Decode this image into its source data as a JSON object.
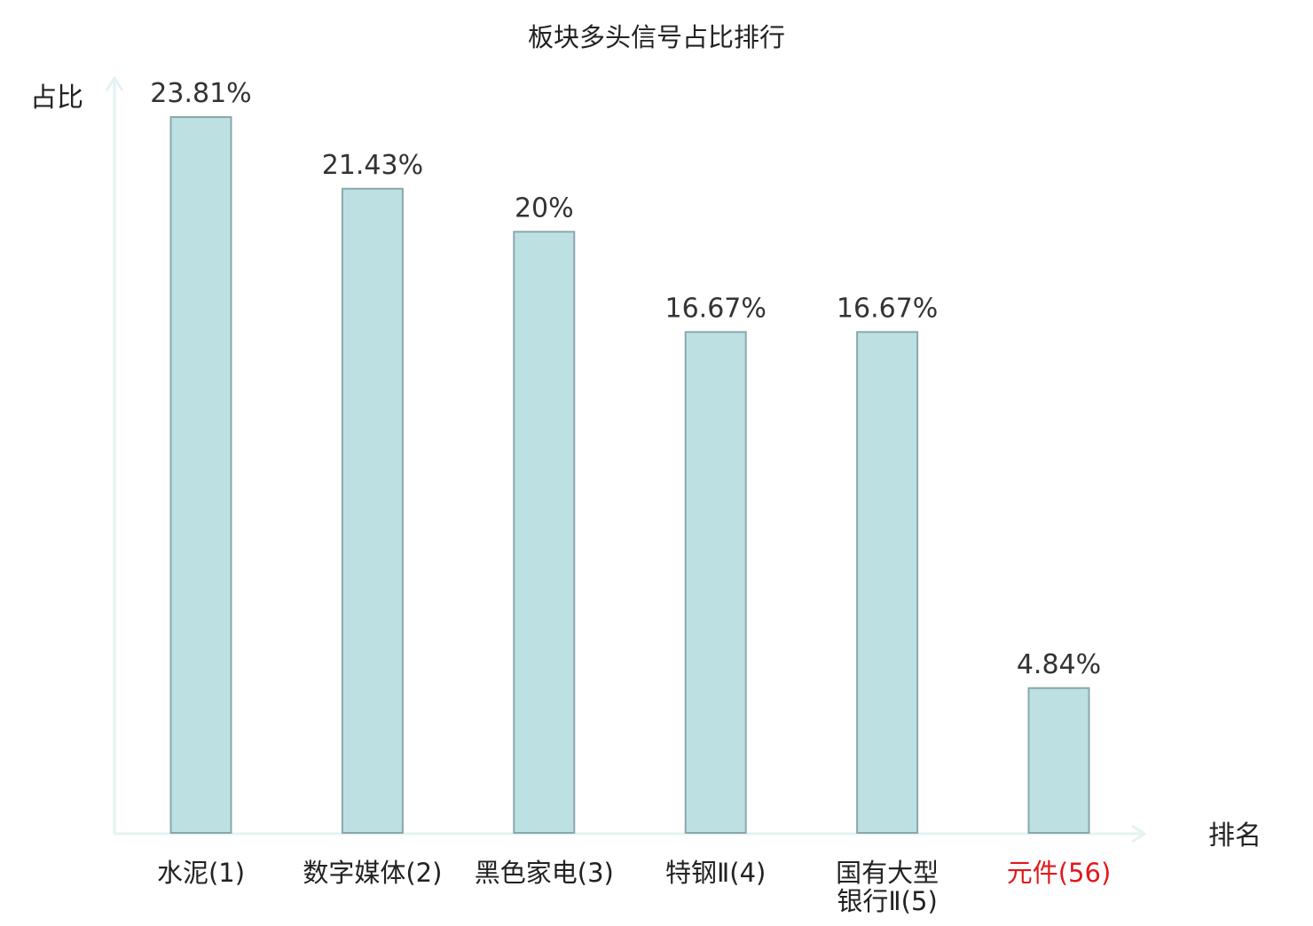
{
  "chart_data": {
    "type": "bar",
    "title": "板块多头信号占比排行",
    "ylabel": "占比",
    "xlabel": "排名",
    "categories": [
      [
        "水泥(1)"
      ],
      [
        "数字媒体(2)"
      ],
      [
        "黑色家电(3)"
      ],
      [
        "特钢Ⅱ(4)"
      ],
      [
        "国有大型",
        "银行Ⅱ(5)"
      ],
      [
        "元件(56)"
      ]
    ],
    "values": [
      23.81,
      21.43,
      20,
      16.67,
      16.67,
      4.84
    ],
    "value_labels": [
      "23.81%",
      "21.43%",
      "20%",
      "16.67%",
      "16.67%",
      "4.84%"
    ],
    "highlight_index": 5,
    "ylim": [
      0,
      25
    ],
    "grid": false,
    "colors": {
      "bar_fill": "#bde0e3",
      "bar_stroke": "#8aa8ab",
      "axis": "#e3f3f1",
      "text": "#333333",
      "title": "#222222",
      "highlight": "#e0191b"
    }
  }
}
